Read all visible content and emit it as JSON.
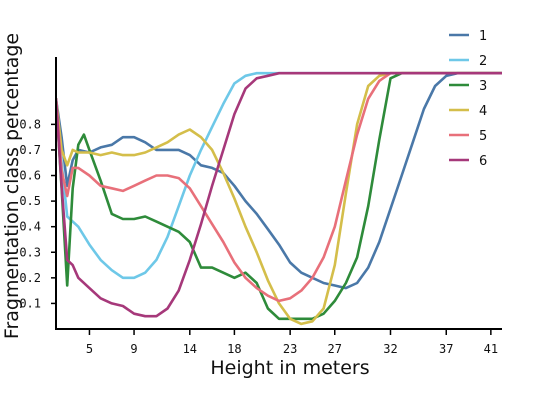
{
  "chart_data": {
    "type": "line",
    "title": "",
    "xlabel": "Height in meters",
    "ylabel": "Fragmentation class percentage",
    "xlim": [
      2,
      42
    ],
    "ylim": [
      0,
      0.95
    ],
    "x_ticks": [
      5,
      9,
      14,
      18,
      23,
      27,
      32,
      37,
      41
    ],
    "y_ticks": [
      0.1,
      0.2,
      0.3,
      0.4,
      0.5,
      0.6,
      0.7,
      0.8
    ],
    "x_tick_labels": [
      "5",
      "9",
      "14",
      "18",
      "23",
      "27",
      "32",
      "37",
      "41"
    ],
    "y_tick_labels": [
      "0.1",
      "0.2",
      "0.3",
      "0.4",
      "0.5",
      "0.6",
      "0.7",
      "0.8"
    ],
    "grid": false,
    "legend_position": "top-right",
    "series": [
      {
        "name": "1",
        "color": "#4a78a8",
        "points": [
          [
            2,
            0.9
          ],
          [
            2.5,
            0.75
          ],
          [
            3,
            0.56
          ],
          [
            3.5,
            0.66
          ],
          [
            4,
            0.7
          ],
          [
            5,
            0.69
          ],
          [
            6,
            0.71
          ],
          [
            7,
            0.72
          ],
          [
            8,
            0.75
          ],
          [
            9,
            0.75
          ],
          [
            10,
            0.73
          ],
          [
            11,
            0.7
          ],
          [
            12,
            0.7
          ],
          [
            13,
            0.7
          ],
          [
            14,
            0.68
          ],
          [
            15,
            0.64
          ],
          [
            16,
            0.63
          ],
          [
            17,
            0.61
          ],
          [
            18,
            0.56
          ],
          [
            19,
            0.5
          ],
          [
            20,
            0.45
          ],
          [
            21,
            0.39
          ],
          [
            22,
            0.33
          ],
          [
            23,
            0.26
          ],
          [
            24,
            0.22
          ],
          [
            25,
            0.2
          ],
          [
            26,
            0.18
          ],
          [
            27,
            0.17
          ],
          [
            28,
            0.16
          ],
          [
            29,
            0.18
          ],
          [
            30,
            0.24
          ],
          [
            31,
            0.34
          ],
          [
            32,
            0.47
          ],
          [
            33,
            0.6
          ],
          [
            34,
            0.73
          ],
          [
            35,
            0.86
          ],
          [
            36,
            0.95
          ],
          [
            37,
            0.99
          ],
          [
            38,
            1.0
          ],
          [
            39,
            1.0
          ],
          [
            40,
            1.0
          ],
          [
            41,
            1.0
          ],
          [
            42,
            1.0
          ]
        ]
      },
      {
        "name": "2",
        "color": "#6ec8e8",
        "points": [
          [
            2,
            0.9
          ],
          [
            2.5,
            0.65
          ],
          [
            3,
            0.44
          ],
          [
            4,
            0.4
          ],
          [
            5,
            0.33
          ],
          [
            6,
            0.27
          ],
          [
            7,
            0.23
          ],
          [
            8,
            0.2
          ],
          [
            9,
            0.2
          ],
          [
            10,
            0.22
          ],
          [
            11,
            0.27
          ],
          [
            12,
            0.36
          ],
          [
            13,
            0.48
          ],
          [
            14,
            0.6
          ],
          [
            15,
            0.7
          ],
          [
            16,
            0.79
          ],
          [
            17,
            0.88
          ],
          [
            18,
            0.96
          ],
          [
            19,
            0.99
          ],
          [
            20,
            1.0
          ],
          [
            21,
            1.0
          ],
          [
            22,
            1.0
          ],
          [
            23,
            1.0
          ],
          [
            24,
            1.0
          ],
          [
            25,
            1.0
          ],
          [
            26,
            1.0
          ],
          [
            27,
            1.0
          ],
          [
            28,
            1.0
          ],
          [
            29,
            1.0
          ],
          [
            30,
            1.0
          ],
          [
            31,
            1.0
          ],
          [
            32,
            1.0
          ],
          [
            33,
            1.0
          ],
          [
            34,
            1.0
          ],
          [
            35,
            1.0
          ],
          [
            36,
            1.0
          ],
          [
            37,
            1.0
          ],
          [
            38,
            1.0
          ],
          [
            39,
            1.0
          ],
          [
            40,
            1.0
          ],
          [
            41,
            1.0
          ],
          [
            42,
            1.0
          ]
        ]
      },
      {
        "name": "3",
        "color": "#2e8b3a",
        "points": [
          [
            2,
            0.9
          ],
          [
            2.5,
            0.55
          ],
          [
            3,
            0.17
          ],
          [
            3.5,
            0.55
          ],
          [
            4,
            0.72
          ],
          [
            4.5,
            0.76
          ],
          [
            5,
            0.7
          ],
          [
            6,
            0.58
          ],
          [
            7,
            0.45
          ],
          [
            8,
            0.43
          ],
          [
            9,
            0.43
          ],
          [
            10,
            0.44
          ],
          [
            11,
            0.42
          ],
          [
            12,
            0.4
          ],
          [
            13,
            0.38
          ],
          [
            14,
            0.34
          ],
          [
            15,
            0.24
          ],
          [
            16,
            0.24
          ],
          [
            17,
            0.22
          ],
          [
            18,
            0.2
          ],
          [
            19,
            0.22
          ],
          [
            20,
            0.18
          ],
          [
            21,
            0.08
          ],
          [
            22,
            0.04
          ],
          [
            23,
            0.04
          ],
          [
            24,
            0.04
          ],
          [
            25,
            0.04
          ],
          [
            26,
            0.06
          ],
          [
            27,
            0.11
          ],
          [
            28,
            0.18
          ],
          [
            29,
            0.28
          ],
          [
            30,
            0.48
          ],
          [
            31,
            0.74
          ],
          [
            32,
            0.98
          ],
          [
            33,
            1.0
          ],
          [
            34,
            1.0
          ],
          [
            35,
            1.0
          ],
          [
            36,
            1.0
          ],
          [
            37,
            1.0
          ],
          [
            38,
            1.0
          ],
          [
            39,
            1.0
          ],
          [
            40,
            1.0
          ],
          [
            41,
            1.0
          ],
          [
            42,
            1.0
          ]
        ]
      },
      {
        "name": "4",
        "color": "#d4be4a",
        "points": [
          [
            2,
            0.9
          ],
          [
            2.5,
            0.7
          ],
          [
            3,
            0.64
          ],
          [
            3.5,
            0.7
          ],
          [
            4,
            0.69
          ],
          [
            5,
            0.69
          ],
          [
            6,
            0.68
          ],
          [
            7,
            0.69
          ],
          [
            8,
            0.68
          ],
          [
            9,
            0.68
          ],
          [
            10,
            0.69
          ],
          [
            11,
            0.71
          ],
          [
            12,
            0.73
          ],
          [
            13,
            0.76
          ],
          [
            14,
            0.78
          ],
          [
            15,
            0.75
          ],
          [
            16,
            0.7
          ],
          [
            17,
            0.61
          ],
          [
            18,
            0.51
          ],
          [
            19,
            0.4
          ],
          [
            20,
            0.3
          ],
          [
            21,
            0.19
          ],
          [
            22,
            0.1
          ],
          [
            23,
            0.04
          ],
          [
            24,
            0.02
          ],
          [
            25,
            0.03
          ],
          [
            26,
            0.08
          ],
          [
            27,
            0.25
          ],
          [
            28,
            0.53
          ],
          [
            29,
            0.8
          ],
          [
            30,
            0.95
          ],
          [
            31,
            0.99
          ],
          [
            32,
            1.0
          ],
          [
            33,
            1.0
          ],
          [
            34,
            1.0
          ],
          [
            35,
            1.0
          ],
          [
            36,
            1.0
          ],
          [
            37,
            1.0
          ],
          [
            38,
            1.0
          ],
          [
            39,
            1.0
          ],
          [
            40,
            1.0
          ],
          [
            41,
            1.0
          ],
          [
            42,
            1.0
          ]
        ]
      },
      {
        "name": "5",
        "color": "#e8707a",
        "points": [
          [
            2,
            0.9
          ],
          [
            2.5,
            0.62
          ],
          [
            3,
            0.52
          ],
          [
            3.5,
            0.63
          ],
          [
            4,
            0.63
          ],
          [
            5,
            0.6
          ],
          [
            6,
            0.56
          ],
          [
            7,
            0.55
          ],
          [
            8,
            0.54
          ],
          [
            9,
            0.56
          ],
          [
            10,
            0.58
          ],
          [
            11,
            0.6
          ],
          [
            12,
            0.6
          ],
          [
            13,
            0.59
          ],
          [
            14,
            0.55
          ],
          [
            15,
            0.48
          ],
          [
            16,
            0.41
          ],
          [
            17,
            0.34
          ],
          [
            18,
            0.26
          ],
          [
            19,
            0.2
          ],
          [
            20,
            0.16
          ],
          [
            21,
            0.13
          ],
          [
            22,
            0.11
          ],
          [
            23,
            0.12
          ],
          [
            24,
            0.15
          ],
          [
            25,
            0.2
          ],
          [
            26,
            0.28
          ],
          [
            27,
            0.4
          ],
          [
            28,
            0.58
          ],
          [
            29,
            0.76
          ],
          [
            30,
            0.9
          ],
          [
            31,
            0.97
          ],
          [
            32,
            1.0
          ],
          [
            33,
            1.0
          ],
          [
            34,
            1.0
          ],
          [
            35,
            1.0
          ],
          [
            36,
            1.0
          ],
          [
            37,
            1.0
          ],
          [
            38,
            1.0
          ],
          [
            39,
            1.0
          ],
          [
            40,
            1.0
          ],
          [
            41,
            1.0
          ],
          [
            42,
            1.0
          ]
        ]
      },
      {
        "name": "6",
        "color": "#a6387a",
        "points": [
          [
            2,
            0.9
          ],
          [
            2.5,
            0.56
          ],
          [
            3,
            0.27
          ],
          [
            3.5,
            0.25
          ],
          [
            4,
            0.2
          ],
          [
            5,
            0.16
          ],
          [
            6,
            0.12
          ],
          [
            7,
            0.1
          ],
          [
            8,
            0.09
          ],
          [
            9,
            0.06
          ],
          [
            10,
            0.05
          ],
          [
            11,
            0.05
          ],
          [
            12,
            0.08
          ],
          [
            13,
            0.15
          ],
          [
            14,
            0.27
          ],
          [
            15,
            0.41
          ],
          [
            16,
            0.56
          ],
          [
            17,
            0.7
          ],
          [
            18,
            0.84
          ],
          [
            19,
            0.94
          ],
          [
            20,
            0.98
          ],
          [
            21,
            0.99
          ],
          [
            22,
            1.0
          ],
          [
            23,
            1.0
          ],
          [
            24,
            1.0
          ],
          [
            25,
            1.0
          ],
          [
            26,
            1.0
          ],
          [
            27,
            1.0
          ],
          [
            28,
            1.0
          ],
          [
            29,
            1.0
          ],
          [
            30,
            1.0
          ],
          [
            31,
            1.0
          ],
          [
            32,
            1.0
          ],
          [
            33,
            1.0
          ],
          [
            34,
            1.0
          ],
          [
            35,
            1.0
          ],
          [
            36,
            1.0
          ],
          [
            37,
            1.0
          ],
          [
            38,
            1.0
          ],
          [
            39,
            1.0
          ],
          [
            40,
            1.0
          ],
          [
            41,
            1.0
          ],
          [
            42,
            1.0
          ]
        ]
      }
    ]
  }
}
